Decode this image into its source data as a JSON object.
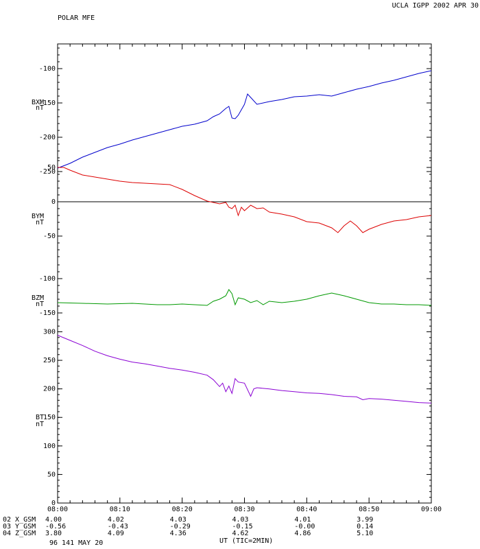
{
  "header": {
    "left": "POLAR MFE",
    "right": "UCLA IGPP 2002 APR 30"
  },
  "footer": {
    "date": "96 141 MAY 20",
    "xaxis_label": "UT (TIC=2MIN)"
  },
  "colors": {
    "bxm": "#0000cc",
    "bym": "#dd0000",
    "bzm": "#009900",
    "bt": "#8a00d4"
  },
  "chart_data": [
    {
      "type": "line",
      "title": "",
      "ylabel": [
        "BXM",
        "nT"
      ],
      "ylim": [
        -234,
        -64
      ],
      "invert": true,
      "yticks": [
        -100,
        -150,
        -200,
        -250
      ],
      "series": [
        {
          "name": "",
          "color": "#0000cc",
          "x": [
            0,
            2,
            4,
            6,
            8,
            10,
            12,
            14,
            16,
            18,
            20,
            22,
            24,
            25,
            26,
            26.5,
            27,
            27.5,
            28,
            28.5,
            29,
            30,
            30.5,
            31,
            32,
            34,
            36,
            38,
            40,
            42,
            44,
            46,
            48,
            50,
            52,
            54,
            56,
            58,
            60
          ],
          "y": [
            -245,
            -238,
            -229,
            -222,
            -215,
            -210,
            -204,
            -199,
            -194,
            -189,
            -184,
            -181,
            -176,
            -170,
            -166,
            -162,
            -158,
            -155,
            -172,
            -173,
            -168,
            -152,
            -137,
            -142,
            -152,
            -148,
            -145,
            -141,
            -140,
            -138,
            -140,
            -135,
            -130,
            -126,
            -121,
            -117,
            -112,
            -107,
            -103
          ]
        }
      ]
    },
    {
      "type": "line",
      "title": "",
      "ylabel": [
        "BYM",
        "nT"
      ],
      "ylim": [
        -87,
        60
      ],
      "yticks": [
        50,
        0,
        -50
      ],
      "zero_line": true,
      "series": [
        {
          "name": "",
          "color": "#dd0000",
          "x": [
            0,
            1,
            2,
            4,
            6,
            8,
            10,
            12,
            14,
            16,
            18,
            20,
            22,
            24,
            26,
            27,
            27.5,
            28,
            28.5,
            29,
            29.5,
            30,
            31,
            32,
            33,
            34,
            36,
            38,
            40,
            42,
            44,
            45,
            46,
            47,
            48,
            49,
            50,
            52,
            54,
            56,
            58,
            60
          ],
          "y": [
            50,
            50,
            46,
            39,
            36,
            33,
            30,
            28,
            27,
            26,
            25,
            18,
            9,
            1,
            -3,
            -1,
            -8,
            -10,
            -5,
            -20,
            -8,
            -13,
            -5,
            -10,
            -9,
            -15,
            -18,
            -22,
            -29,
            -31,
            -38,
            -45,
            -35,
            -28,
            -35,
            -45,
            -40,
            -33,
            -28,
            -26,
            -22,
            -20
          ]
        }
      ]
    },
    {
      "type": "line",
      "title": "",
      "ylabel": [
        "BZM",
        "nT"
      ],
      "ylim": [
        -165,
        -75
      ],
      "yticks": [
        -100,
        -150
      ],
      "series": [
        {
          "name": "",
          "color": "#009900",
          "x": [
            0,
            4,
            8,
            12,
            16,
            18,
            20,
            22,
            24,
            25,
            26,
            27,
            27.5,
            28,
            28.5,
            29,
            30,
            31,
            32,
            33,
            34,
            36,
            38,
            40,
            42,
            44,
            45,
            46,
            48,
            50,
            52,
            54,
            56,
            58,
            60
          ],
          "y": [
            -135,
            -136,
            -137,
            -136,
            -138,
            -138,
            -137,
            -138,
            -139,
            -133,
            -130,
            -125,
            -116,
            -122,
            -138,
            -128,
            -130,
            -135,
            -132,
            -138,
            -133,
            -135,
            -133,
            -130,
            -125,
            -121,
            -123,
            -125,
            -130,
            -135,
            -137,
            -137,
            -138,
            -138,
            -139
          ]
        }
      ]
    },
    {
      "type": "line",
      "title": "",
      "ylabel": [
        "BT",
        "nT"
      ],
      "ylim": [
        0,
        315
      ],
      "yticks": [
        300,
        250,
        200,
        150,
        100,
        50,
        0
      ],
      "series": [
        {
          "name": "",
          "color": "#8a00d4",
          "x": [
            0,
            2,
            4,
            6,
            8,
            10,
            12,
            14,
            16,
            18,
            20,
            22,
            24,
            25,
            26,
            26.5,
            27,
            27.5,
            28,
            28.5,
            29,
            30,
            31,
            31.5,
            32,
            34,
            36,
            38,
            40,
            42,
            44,
            46,
            48,
            49,
            50,
            52,
            54,
            56,
            58,
            60
          ],
          "y": [
            294,
            285,
            276,
            266,
            258,
            252,
            247,
            244,
            240,
            236,
            233,
            229,
            224,
            216,
            204,
            210,
            195,
            205,
            192,
            218,
            212,
            210,
            187,
            200,
            202,
            200,
            197,
            195,
            193,
            192,
            190,
            187,
            186,
            181,
            183,
            182,
            180,
            178,
            176,
            175
          ]
        }
      ]
    }
  ],
  "x_axis": {
    "range": [
      0,
      60
    ],
    "ticks": [
      0,
      10,
      20,
      30,
      40,
      50,
      60
    ],
    "tick_labels": [
      "08:00",
      "08:10",
      "08:20",
      "08:30",
      "08:40",
      "08:50",
      "09:00"
    ]
  },
  "ephemeris": {
    "labels": [
      "02 X_GSM",
      "03 Y_GSM",
      "04 Z_GSM"
    ],
    "rows": [
      [
        "4.00",
        "4.02",
        "4.03",
        "4.03",
        "4.01",
        "3.99"
      ],
      [
        "-0.56",
        "-0.43",
        "-0.29",
        "-0.15",
        "-0.00",
        "0.14"
      ],
      [
        "3.80",
        "4.09",
        "4.36",
        "4.62",
        "4.86",
        "5.10"
      ]
    ]
  }
}
